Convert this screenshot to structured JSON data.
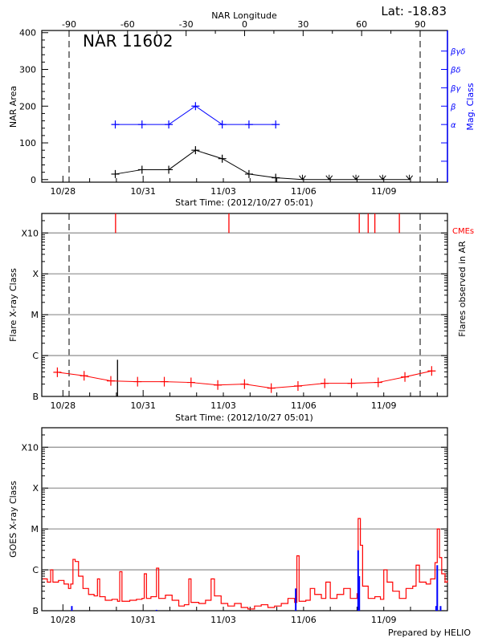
{
  "header": {
    "latitude": "Lat: -18.83",
    "credit": "Prepared by HELIO"
  },
  "colors": {
    "series_red": "#ff0000",
    "series_blue": "#0000ff",
    "series_black": "#000000",
    "grid": "#999999"
  },
  "chart_data": [
    {
      "type": "line",
      "panel": "nar",
      "title": "NAR 11602",
      "xlabel": "Start Time: (2012/10/27 05:01)",
      "xlim": [
        "10/27 05:01",
        "11/11 09:10"
      ],
      "x_tick_labels": [
        "10/28",
        "10/31",
        "11/03",
        "11/06",
        "11/09"
      ],
      "top_axis": {
        "label": "NAR Longitude",
        "xlim": [
          -104,
          104
        ],
        "tick_labels": [
          "-90",
          "-60",
          "-30",
          "0",
          "30",
          "60",
          "90"
        ],
        "tick_values": [
          -90,
          -60,
          -30,
          0,
          30,
          60,
          90
        ]
      },
      "limb_lines_longitude": [
        -90,
        90
      ],
      "ylabel": "NAR Area",
      "ylim": [
        -7,
        406
      ],
      "y_tick_labels": [
        "0",
        "100",
        "200",
        "300",
        "400"
      ],
      "y2label": "Mag. Class",
      "mag_class_levels": [
        {
          "label": "α",
          "value": 150
        },
        {
          "label": "β",
          "value": 200
        },
        {
          "label": "βγ",
          "value": 250
        },
        {
          "label": "βδ",
          "value": 300
        },
        {
          "label": "βγδ",
          "value": 350
        }
      ],
      "series": [
        {
          "color": "#000000",
          "x": [
            "10/29 23",
            "10/30 23",
            "10/31 23",
            "11/01 23",
            "11/02 23",
            "11/03 23",
            "11/04 23",
            "11/05 23",
            "11/06 23",
            "11/07 23",
            "11/08 23",
            "11/09 23"
          ],
          "values": [
            15,
            27,
            27,
            80,
            57,
            15,
            5,
            0,
            0,
            0,
            0,
            0
          ]
        },
        {
          "color": "#0000ff",
          "x": [
            "10/29 23",
            "10/30 23",
            "10/31 23",
            "11/01 23",
            "11/02 23",
            "11/03 23",
            "11/04 23"
          ],
          "values": [
            "α",
            "α",
            "α",
            "β",
            "α",
            "α",
            "α"
          ]
        }
      ]
    },
    {
      "type": "line",
      "panel": "flares",
      "xlabel": "Start Time: (2012/10/27 05:01)",
      "xlim": [
        "10/27 05:01",
        "11/11 09:10"
      ],
      "x_tick_labels": [
        "10/28",
        "10/31",
        "11/03",
        "11/06",
        "11/09"
      ],
      "ylabel": "Flare X-ray Class",
      "y2label": "Flares observed in AR",
      "y_scale": "log",
      "ylim": [
        "B1.0",
        "X30"
      ],
      "y_tick_labels": [
        "B",
        "C",
        "M",
        "X",
        "X10"
      ],
      "grid": true,
      "cme_label": "CMEs",
      "cmes": [
        "10/29 23:15",
        "11/03 05:00",
        "11/08 02:00",
        "11/08 10:00",
        "11/08 16:00",
        "11/09 14:00"
      ],
      "flares": [
        {
          "x": "10/30 01:00",
          "class": "B7.9"
        }
      ],
      "background": {
        "color": "#ff0000",
        "x": [
          "10/27 19",
          "10/28 19",
          "10/29 19",
          "10/30 19",
          "10/31 19",
          "11/01 19",
          "11/02 19",
          "11/03 19",
          "11/04 19",
          "11/05 19",
          "11/06 19",
          "11/07 19",
          "11/08 19",
          "11/09 19",
          "11/10 19"
        ],
        "values": [
          "B3.9",
          "B3.2",
          "B2.4",
          "B2.3",
          "B2.3",
          "B2.2",
          "B1.9",
          "B2.0",
          "B1.6",
          "B1.8",
          "B2.1",
          "B2.1",
          "B2.2",
          "B3.0",
          "B4.2"
        ]
      }
    },
    {
      "type": "line",
      "panel": "goes",
      "xlim": [
        "10/27 05:01",
        "11/11 09:10"
      ],
      "x_tick_labels": [
        "10/28",
        "10/31",
        "11/03",
        "11/06",
        "11/09"
      ],
      "ylabel": "GOES X-ray Class",
      "y_scale": "log",
      "ylim": [
        "B1.0",
        "X30"
      ],
      "y_tick_labels": [
        "B",
        "C",
        "M",
        "X",
        "X10"
      ],
      "grid": true,
      "series": [
        {
          "color": "#ff0000",
          "points": [
            [
              "10/27 06",
              "B6"
            ],
            [
              "10/27 10",
              "B5"
            ],
            [
              "10/27 13",
              "C1.0"
            ],
            [
              "10/27 15",
              "B5"
            ],
            [
              "10/27 20",
              "B5.5"
            ],
            [
              "10/28 01",
              "B4.5"
            ],
            [
              "10/28 05",
              "B3.5"
            ],
            [
              "10/28 07",
              "B4.5"
            ],
            [
              "10/28 09",
              "C1.8"
            ],
            [
              "10/28 11",
              "C1.6"
            ],
            [
              "10/28 14",
              "B7"
            ],
            [
              "10/28 18",
              "B3.5"
            ],
            [
              "10/28 23",
              "B2.5"
            ],
            [
              "10/29 04",
              "B2.3"
            ],
            [
              "10/29 07",
              "B6"
            ],
            [
              "10/29 09",
              "B2.2"
            ],
            [
              "10/29 14",
              "B1.8"
            ],
            [
              "10/29 20",
              "B1.9"
            ],
            [
              "10/30 01",
              "B1.7"
            ],
            [
              "10/30 03",
              "B9"
            ],
            [
              "10/30 05",
              "B1.7"
            ],
            [
              "10/30 12",
              "B1.8"
            ],
            [
              "10/30 18",
              "B1.9"
            ],
            [
              "10/30 23",
              "B2.0"
            ],
            [
              "10/31 01",
              "B8"
            ],
            [
              "10/31 03",
              "B2.0"
            ],
            [
              "10/31 07",
              "B2.2"
            ],
            [
              "10/31 12",
              "C1.1"
            ],
            [
              "10/31 14",
              "B2.0"
            ],
            [
              "10/31 20",
              "B2.4"
            ],
            [
              "11/01 02",
              "B1.8"
            ],
            [
              "11/01 08",
              "B1.3"
            ],
            [
              "11/01 13",
              "B1.4"
            ],
            [
              "11/01 17",
              "B6"
            ],
            [
              "11/01 19",
              "B1.6"
            ],
            [
              "11/02 02",
              "B1.5"
            ],
            [
              "11/02 08",
              "B1.8"
            ],
            [
              "11/02 13",
              "B6"
            ],
            [
              "11/02 16",
              "B2.3"
            ],
            [
              "11/02 22",
              "B1.5"
            ],
            [
              "11/03 04",
              "B1.3"
            ],
            [
              "11/03 10",
              "B1.5"
            ],
            [
              "11/03 16",
              "B1.2"
            ],
            [
              "11/03 22",
              "B1.1"
            ],
            [
              "11/04 04",
              "B1.3"
            ],
            [
              "11/04 10",
              "B1.4"
            ],
            [
              "11/04 16",
              "B1.2"
            ],
            [
              "11/04 22",
              "B1.3"
            ],
            [
              "11/05 04",
              "B1.5"
            ],
            [
              "11/05 10",
              "B2.0"
            ],
            [
              "11/05 16",
              "B1.6"
            ],
            [
              "11/05 18",
              "C2.2"
            ],
            [
              "11/05 20",
              "B1.7"
            ],
            [
              "11/06 02",
              "B1.8"
            ],
            [
              "11/06 06",
              "B3.5"
            ],
            [
              "11/06 10",
              "B2.5"
            ],
            [
              "11/06 16",
              "B2.0"
            ],
            [
              "11/06 20",
              "B5"
            ],
            [
              "11/07 00",
              "B2.0"
            ],
            [
              "11/07 06",
              "B2.5"
            ],
            [
              "11/07 12",
              "B3.5"
            ],
            [
              "11/07 18",
              "B2.0"
            ],
            [
              "11/08 00",
              "B2.6"
            ],
            [
              "11/08 01",
              "M1.8"
            ],
            [
              "11/08 03",
              "C4"
            ],
            [
              "11/08 05",
              "B4"
            ],
            [
              "11/08 10",
              "B2.0"
            ],
            [
              "11/08 16",
              "B2.2"
            ],
            [
              "11/08 21",
              "B1.9"
            ],
            [
              "11/09 00",
              "C1.0"
            ],
            [
              "11/09 03",
              "B5"
            ],
            [
              "11/09 08",
              "B3"
            ],
            [
              "11/09 14",
              "B2.0"
            ],
            [
              "11/09 20",
              "B3.5"
            ],
            [
              "11/10 02",
              "B4"
            ],
            [
              "11/10 05",
              "C1.3"
            ],
            [
              "11/10 08",
              "B5"
            ],
            [
              "11/10 14",
              "B4.5"
            ],
            [
              "11/10 18",
              "B6"
            ],
            [
              "11/10 22",
              "C1.5"
            ],
            [
              "11/11 00",
              "M1.0"
            ],
            [
              "11/11 02",
              "C2"
            ],
            [
              "11/11 04",
              "B8"
            ],
            [
              "11/11 07",
              "B5"
            ],
            [
              "11/11 09",
              "B5.5"
            ]
          ]
        },
        {
          "color": "#0000ff",
          "points": [
            [
              "10/28 08",
              "B1.3"
            ],
            [
              "10/31 12",
              "B1.05"
            ],
            [
              "11/05 17",
              "B3.5"
            ],
            [
              "11/08 01",
              "C3"
            ],
            [
              "11/08 02",
              "B7"
            ],
            [
              "11/10 23",
              "B1.3"
            ],
            [
              "11/11 00",
              "C1.3"
            ],
            [
              "11/11 03",
              "B1.3"
            ]
          ]
        }
      ]
    }
  ]
}
